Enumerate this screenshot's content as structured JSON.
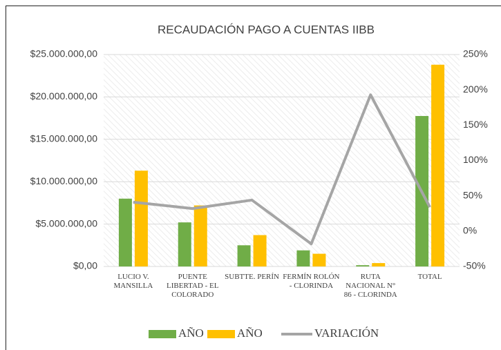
{
  "chart_data": {
    "type": "bar-line",
    "title": "RECAUDACIÓN PAGO A CUENTAS IIBB",
    "categories": [
      "LUCIO V. MANSILLA",
      "PUENTE LIBERTAD - EL COLORADO",
      "SUBTTE. PERÍN",
      "FERMÍN ROLÓN - CLORINDA",
      "RUTA NACIONAL N° 86 - CLORINDA",
      "TOTAL"
    ],
    "series": [
      {
        "name": "AÑO",
        "type": "bar",
        "color": "#70ad47",
        "values": [
          8000000,
          5200000,
          2500000,
          1900000,
          150000,
          17750000
        ]
      },
      {
        "name": "AÑO",
        "type": "bar",
        "color": "#ffc000",
        "values": [
          11300000,
          7200000,
          3700000,
          1500000,
          400000,
          23800000
        ]
      },
      {
        "name": "VARIACIÓN",
        "type": "line",
        "axis": "y2",
        "color": "#a5a5a5",
        "values": [
          41,
          32,
          44,
          -18,
          193,
          34
        ]
      }
    ],
    "ylim": [
      0,
      25000000
    ],
    "yticks": [
      {
        "value": 0,
        "label": "$0,00"
      },
      {
        "value": 5000000,
        "label": "$5.000.000,00"
      },
      {
        "value": 10000000,
        "label": "$10.000.000,00"
      },
      {
        "value": 15000000,
        "label": "$15.000.000,00"
      },
      {
        "value": 20000000,
        "label": "$20.000.000,00"
      },
      {
        "value": 25000000,
        "label": "$25.000.000,00"
      }
    ],
    "y2lim": [
      -50,
      250
    ],
    "y2ticks": [
      {
        "value": -50,
        "label": "-50%"
      },
      {
        "value": 0,
        "label": "0%"
      },
      {
        "value": 50,
        "label": "50%"
      },
      {
        "value": 100,
        "label": "100%"
      },
      {
        "value": 150,
        "label": "150%"
      },
      {
        "value": 200,
        "label": "200%"
      },
      {
        "value": 250,
        "label": "250%"
      }
    ],
    "legend": "bottom"
  }
}
